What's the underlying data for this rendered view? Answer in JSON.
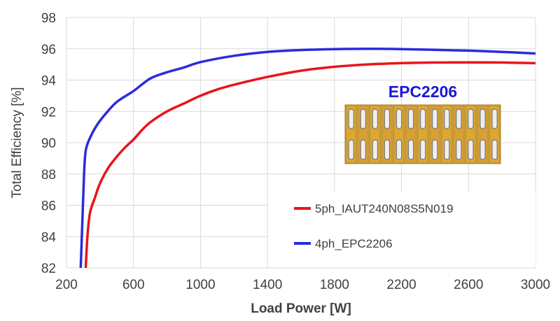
{
  "chart_data": {
    "type": "line",
    "xlabel": "Load Power [W]",
    "ylabel": "Total Efficiency [%]",
    "xlim": [
      200,
      3000
    ],
    "ylim": [
      82,
      98
    ],
    "xticks": [
      "200",
      "600",
      "1000",
      "1400",
      "1800",
      "2200",
      "2600",
      "3000"
    ],
    "yticks": [
      "82",
      "84",
      "86",
      "88",
      "90",
      "92",
      "94",
      "96",
      "98"
    ],
    "grid": true,
    "legend_position": "bottom-right",
    "series": [
      {
        "name": "5ph_IAUT240N08S5N019",
        "color": "#e8141b",
        "points": [
          [
            315,
            82
          ],
          [
            325,
            84
          ],
          [
            340,
            85.5
          ],
          [
            370,
            86.5
          ],
          [
            400,
            87.4
          ],
          [
            450,
            88.4
          ],
          [
            500,
            89.1
          ],
          [
            550,
            89.7
          ],
          [
            600,
            90.2
          ],
          [
            650,
            90.8
          ],
          [
            700,
            91.3
          ],
          [
            800,
            92.0
          ],
          [
            900,
            92.5
          ],
          [
            1000,
            93.0
          ],
          [
            1100,
            93.4
          ],
          [
            1200,
            93.7
          ],
          [
            1400,
            94.2
          ],
          [
            1600,
            94.6
          ],
          [
            1800,
            94.85
          ],
          [
            2000,
            95.0
          ],
          [
            2200,
            95.08
          ],
          [
            2400,
            95.12
          ],
          [
            2600,
            95.13
          ],
          [
            2800,
            95.12
          ],
          [
            3000,
            95.08
          ]
        ]
      },
      {
        "name": "4ph_EPC2206",
        "color": "#2b2bde",
        "points": [
          [
            285,
            82
          ],
          [
            295,
            85
          ],
          [
            305,
            88
          ],
          [
            315,
            89.5
          ],
          [
            340,
            90.3
          ],
          [
            380,
            91.1
          ],
          [
            430,
            91.8
          ],
          [
            500,
            92.6
          ],
          [
            600,
            93.3
          ],
          [
            700,
            94.1
          ],
          [
            800,
            94.5
          ],
          [
            900,
            94.8
          ],
          [
            1000,
            95.15
          ],
          [
            1200,
            95.55
          ],
          [
            1400,
            95.8
          ],
          [
            1600,
            95.92
          ],
          [
            1800,
            95.98
          ],
          [
            2000,
            96.0
          ],
          [
            2200,
            95.98
          ],
          [
            2400,
            95.93
          ],
          [
            2600,
            95.88
          ],
          [
            2800,
            95.8
          ],
          [
            3000,
            95.7
          ]
        ]
      }
    ],
    "inset": {
      "title": "EPC2206",
      "title_color": "#1a1ad6",
      "columns": 13,
      "rows": 2
    }
  }
}
